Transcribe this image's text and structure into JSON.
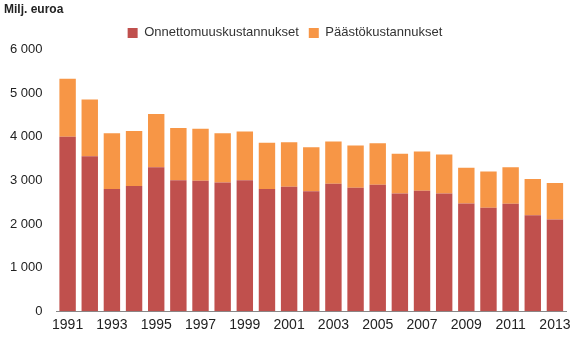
{
  "chart_data": {
    "type": "bar",
    "stacked": true,
    "ylabel": "Milj. euroa",
    "categories": [
      "1991",
      null,
      "1993",
      null,
      "1995",
      null,
      "1997",
      null,
      "1999",
      null,
      "2001",
      null,
      "2003",
      null,
      "2005",
      null,
      "2007",
      null,
      "2009",
      null,
      "2011",
      null,
      "2013"
    ],
    "series": [
      {
        "name": "Onnettomuuskustannukset",
        "color": "#c0504d",
        "values": [
          4000,
          3550,
          2800,
          2870,
          3300,
          3000,
          2990,
          2950,
          3000,
          2800,
          2850,
          2750,
          2920,
          2830,
          2900,
          2700,
          2760,
          2700,
          2470,
          2370,
          2460,
          2200,
          2100
        ]
      },
      {
        "name": "Päästökustannukset",
        "color": "#f79646",
        "values": [
          1330,
          1300,
          1280,
          1260,
          1220,
          1200,
          1190,
          1130,
          1120,
          1060,
          1020,
          1010,
          970,
          970,
          950,
          910,
          900,
          890,
          820,
          830,
          840,
          830,
          840
        ]
      }
    ],
    "ylim": [
      0,
      6000
    ],
    "yticks": [
      0,
      {
        "value": 1000,
        "label": "1 000"
      },
      {
        "value": 2000,
        "label": "2 000"
      },
      {
        "value": 3000,
        "label": "3 000"
      },
      {
        "value": 4000,
        "label": "4 000"
      },
      {
        "value": 5000,
        "label": "5 000"
      },
      {
        "value": 6000,
        "label": "6 000"
      }
    ],
    "grid": false,
    "legend": "top"
  }
}
